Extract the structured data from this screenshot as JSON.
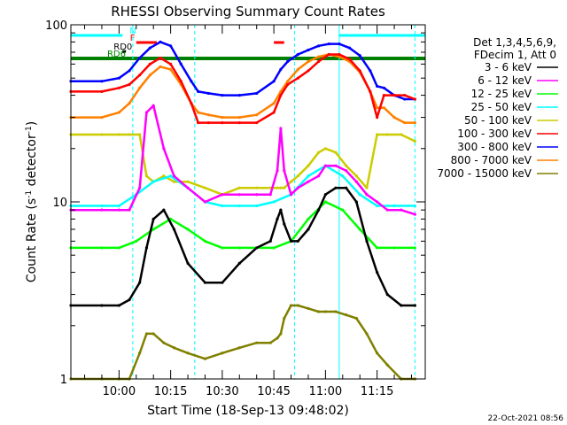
{
  "chart_data": {
    "type": "line",
    "title": "RHESSI Observing Summary Count Rates",
    "xlabel": "Start Time (18-Sep-13 09:48:02)",
    "ylabel": "Count Rate (s⁻¹ detector⁻¹)",
    "ylabel_main": "Count Rate (s",
    "ylabel_sup": "-1",
    "ylabel_mid": " detector",
    "ylabel_sup2": "-1",
    "ylabel_end": ")",
    "yscale": "log",
    "ylim": [
      1,
      100
    ],
    "xlim_minutes": [
      -14,
      89
    ],
    "x_ticks": [
      "10:00",
      "10:15",
      "10:30",
      "10:45",
      "11:00",
      "11:15"
    ],
    "x_ticks_min": [
      0,
      15,
      30,
      45,
      60,
      75
    ],
    "y_ticks": [
      "1",
      "10",
      "100"
    ],
    "y_ticks_val": [
      1,
      10,
      100
    ],
    "legend_header": [
      "Det 1,3,4,5,6,9,",
      "FDecim 1, Att 0"
    ],
    "legend_position": "right",
    "footer_date": "22-Oct-2021 08:56",
    "series": [
      {
        "name": "3 - 6 keV",
        "color": "#000000",
        "x": [
          -14,
          -5,
          0,
          3,
          6,
          8,
          10,
          13,
          16,
          20,
          25,
          30,
          35,
          40,
          44,
          46,
          47,
          48,
          50,
          52,
          55,
          58,
          60,
          63,
          66,
          69,
          72,
          75,
          78,
          82,
          86
        ],
        "y": [
          2.6,
          2.6,
          2.6,
          2.8,
          3.5,
          5.5,
          8,
          9,
          7,
          4.5,
          3.5,
          3.5,
          4.5,
          5.5,
          6,
          8,
          9,
          7.5,
          6,
          6,
          7,
          9,
          11,
          12,
          12,
          10,
          6,
          4,
          3,
          2.6,
          2.6
        ]
      },
      {
        "name": "6 - 12 keV",
        "color": "#ff00ff",
        "x": [
          -14,
          -5,
          0,
          3,
          6,
          8,
          10,
          13,
          16,
          20,
          25,
          30,
          35,
          40,
          44,
          46,
          47,
          48,
          50,
          52,
          55,
          58,
          60,
          63,
          66,
          69,
          72,
          75,
          78,
          82,
          86
        ],
        "y": [
          9,
          9,
          9,
          9,
          12,
          32,
          35,
          20,
          14,
          12,
          10,
          11,
          11,
          11,
          11,
          15,
          26,
          15,
          11,
          12,
          13,
          14,
          16,
          16,
          15,
          13,
          11,
          10,
          9,
          9,
          8.5
        ]
      },
      {
        "name": "12 - 25 keV",
        "color": "#00ff00",
        "x": [
          -14,
          -5,
          0,
          5,
          10,
          15,
          20,
          25,
          30,
          35,
          40,
          45,
          50,
          55,
          60,
          65,
          70,
          75,
          80,
          86
        ],
        "y": [
          5.5,
          5.5,
          5.5,
          6,
          7,
          8,
          7,
          6,
          5.5,
          5.5,
          5.5,
          5.5,
          6,
          8,
          10,
          9,
          7,
          5.5,
          5.5,
          5.5
        ]
      },
      {
        "name": "25 - 50 keV",
        "color": "#00ffff",
        "x": [
          -14,
          -5,
          0,
          5,
          10,
          15,
          20,
          25,
          30,
          35,
          40,
          45,
          50,
          55,
          60,
          65,
          70,
          75,
          80,
          86
        ],
        "y": [
          9.5,
          9.5,
          9.5,
          11,
          13,
          14,
          12,
          10,
          9.5,
          9.5,
          9.5,
          10,
          11,
          14,
          16,
          14,
          11,
          9.5,
          9.5,
          9.5
        ]
      },
      {
        "name": "50 - 100 keV",
        "color": "#cccc00",
        "x": [
          -14,
          -5,
          0,
          3,
          6,
          8,
          10,
          13,
          16,
          20,
          25,
          30,
          35,
          40,
          44,
          46,
          47,
          48,
          50,
          52,
          55,
          58,
          60,
          63,
          66,
          69,
          72,
          75,
          78,
          82,
          86
        ],
        "y": [
          24,
          24,
          24,
          24,
          24,
          14,
          13,
          14,
          13,
          13,
          12,
          11,
          12,
          12,
          12,
          12,
          12,
          12,
          13,
          14,
          16,
          19,
          20,
          19,
          16,
          14,
          12,
          24,
          24,
          24,
          22
        ]
      },
      {
        "name": "100 - 300 keV",
        "color": "#ff0000",
        "x": [
          -14,
          -5,
          0,
          3,
          6,
          9,
          12,
          15,
          18,
          21,
          23,
          26,
          30,
          35,
          40,
          45,
          47,
          49,
          52,
          55,
          58,
          61,
          64,
          67,
          70,
          73,
          75,
          77,
          80,
          83,
          86
        ],
        "y": [
          42,
          42,
          44,
          46,
          52,
          60,
          65,
          60,
          48,
          36,
          28,
          28,
          28,
          28,
          28,
          32,
          40,
          46,
          50,
          55,
          62,
          68,
          68,
          64,
          55,
          42,
          30,
          40,
          40,
          40,
          38
        ]
      },
      {
        "name": "300 - 800 keV",
        "color": "#0000ff",
        "x": [
          -14,
          -5,
          0,
          3,
          6,
          9,
          12,
          15,
          18,
          21,
          23,
          26,
          30,
          35,
          40,
          45,
          47,
          49,
          52,
          55,
          58,
          61,
          64,
          67,
          70,
          73,
          75,
          77,
          80,
          83,
          86
        ],
        "y": [
          48,
          48,
          50,
          55,
          65,
          74,
          80,
          76,
          60,
          48,
          42,
          41,
          40,
          40,
          41,
          48,
          56,
          62,
          68,
          72,
          76,
          78,
          78,
          74,
          67,
          55,
          45,
          44,
          40,
          38,
          38
        ]
      },
      {
        "name": "800 - 7000 keV",
        "color": "#ff8000",
        "x": [
          -14,
          -5,
          0,
          3,
          6,
          9,
          12,
          15,
          18,
          21,
          23,
          26,
          30,
          35,
          40,
          45,
          47,
          49,
          52,
          55,
          58,
          61,
          64,
          67,
          70,
          73,
          75,
          77,
          80,
          83,
          86
        ],
        "y": [
          30,
          30,
          32,
          36,
          44,
          52,
          58,
          56,
          46,
          36,
          32,
          31,
          30,
          30,
          31,
          36,
          42,
          48,
          56,
          62,
          66,
          68,
          66,
          62,
          54,
          42,
          34,
          34,
          30,
          28,
          28
        ]
      },
      {
        "name": "7000 - 15000 keV",
        "color": "#808000",
        "x": [
          -14,
          -5,
          0,
          3,
          6,
          8,
          10,
          13,
          16,
          20,
          25,
          30,
          35,
          40,
          44,
          46,
          47,
          48,
          50,
          52,
          55,
          58,
          60,
          63,
          66,
          69,
          72,
          75,
          78,
          82,
          86
        ],
        "y": [
          1,
          1,
          1,
          1,
          1.4,
          1.8,
          1.8,
          1.6,
          1.5,
          1.4,
          1.3,
          1.4,
          1.5,
          1.6,
          1.6,
          1.7,
          1.8,
          2.2,
          2.6,
          2.6,
          2.5,
          2.4,
          2.4,
          2.4,
          2.3,
          2.2,
          1.8,
          1.4,
          1.2,
          1,
          1
        ]
      }
    ],
    "status_bars": {
      "N": {
        "label": "N",
        "color": "#00ffff",
        "segments": [
          [
            -14,
            1
          ],
          [
            64,
            89
          ]
        ]
      },
      "F": {
        "label": "F",
        "color": "#ff0000",
        "segments": [
          [
            5,
            11
          ],
          [
            45,
            48
          ]
        ]
      },
      "RD0": {
        "label": "RD0",
        "color": "#000000",
        "segments": [
          [
            1,
            2
          ]
        ]
      },
      "RD6": {
        "label": "RD6",
        "color": "#008000",
        "segments": [
          [
            -14,
            89
          ]
        ]
      }
    },
    "saa_lines_min": [
      4,
      22,
      51
    ],
    "night_lines_min": [
      64,
      86
    ]
  }
}
